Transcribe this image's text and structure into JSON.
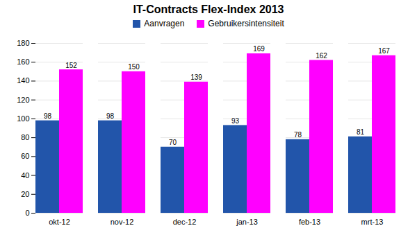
{
  "chart_data": {
    "type": "bar",
    "title": "IT-Contracts Flex-Index 2013",
    "categories": [
      "okt-12",
      "nov-12",
      "dec-12",
      "jan-13",
      "feb-13",
      "mrt-13"
    ],
    "series": [
      {
        "name": "Aanvragen",
        "color": "#2255AA",
        "values": [
          98,
          98,
          70,
          93,
          78,
          81
        ]
      },
      {
        "name": "Gebruikersintensiteit",
        "color": "#FF00FF",
        "values": [
          152,
          150,
          139,
          169,
          162,
          167
        ]
      }
    ],
    "ylim": [
      0,
      180
    ],
    "yticks": [
      0,
      20,
      40,
      60,
      80,
      100,
      120,
      140,
      160,
      180
    ],
    "grid": true,
    "legend": "top",
    "data_labels": true
  }
}
